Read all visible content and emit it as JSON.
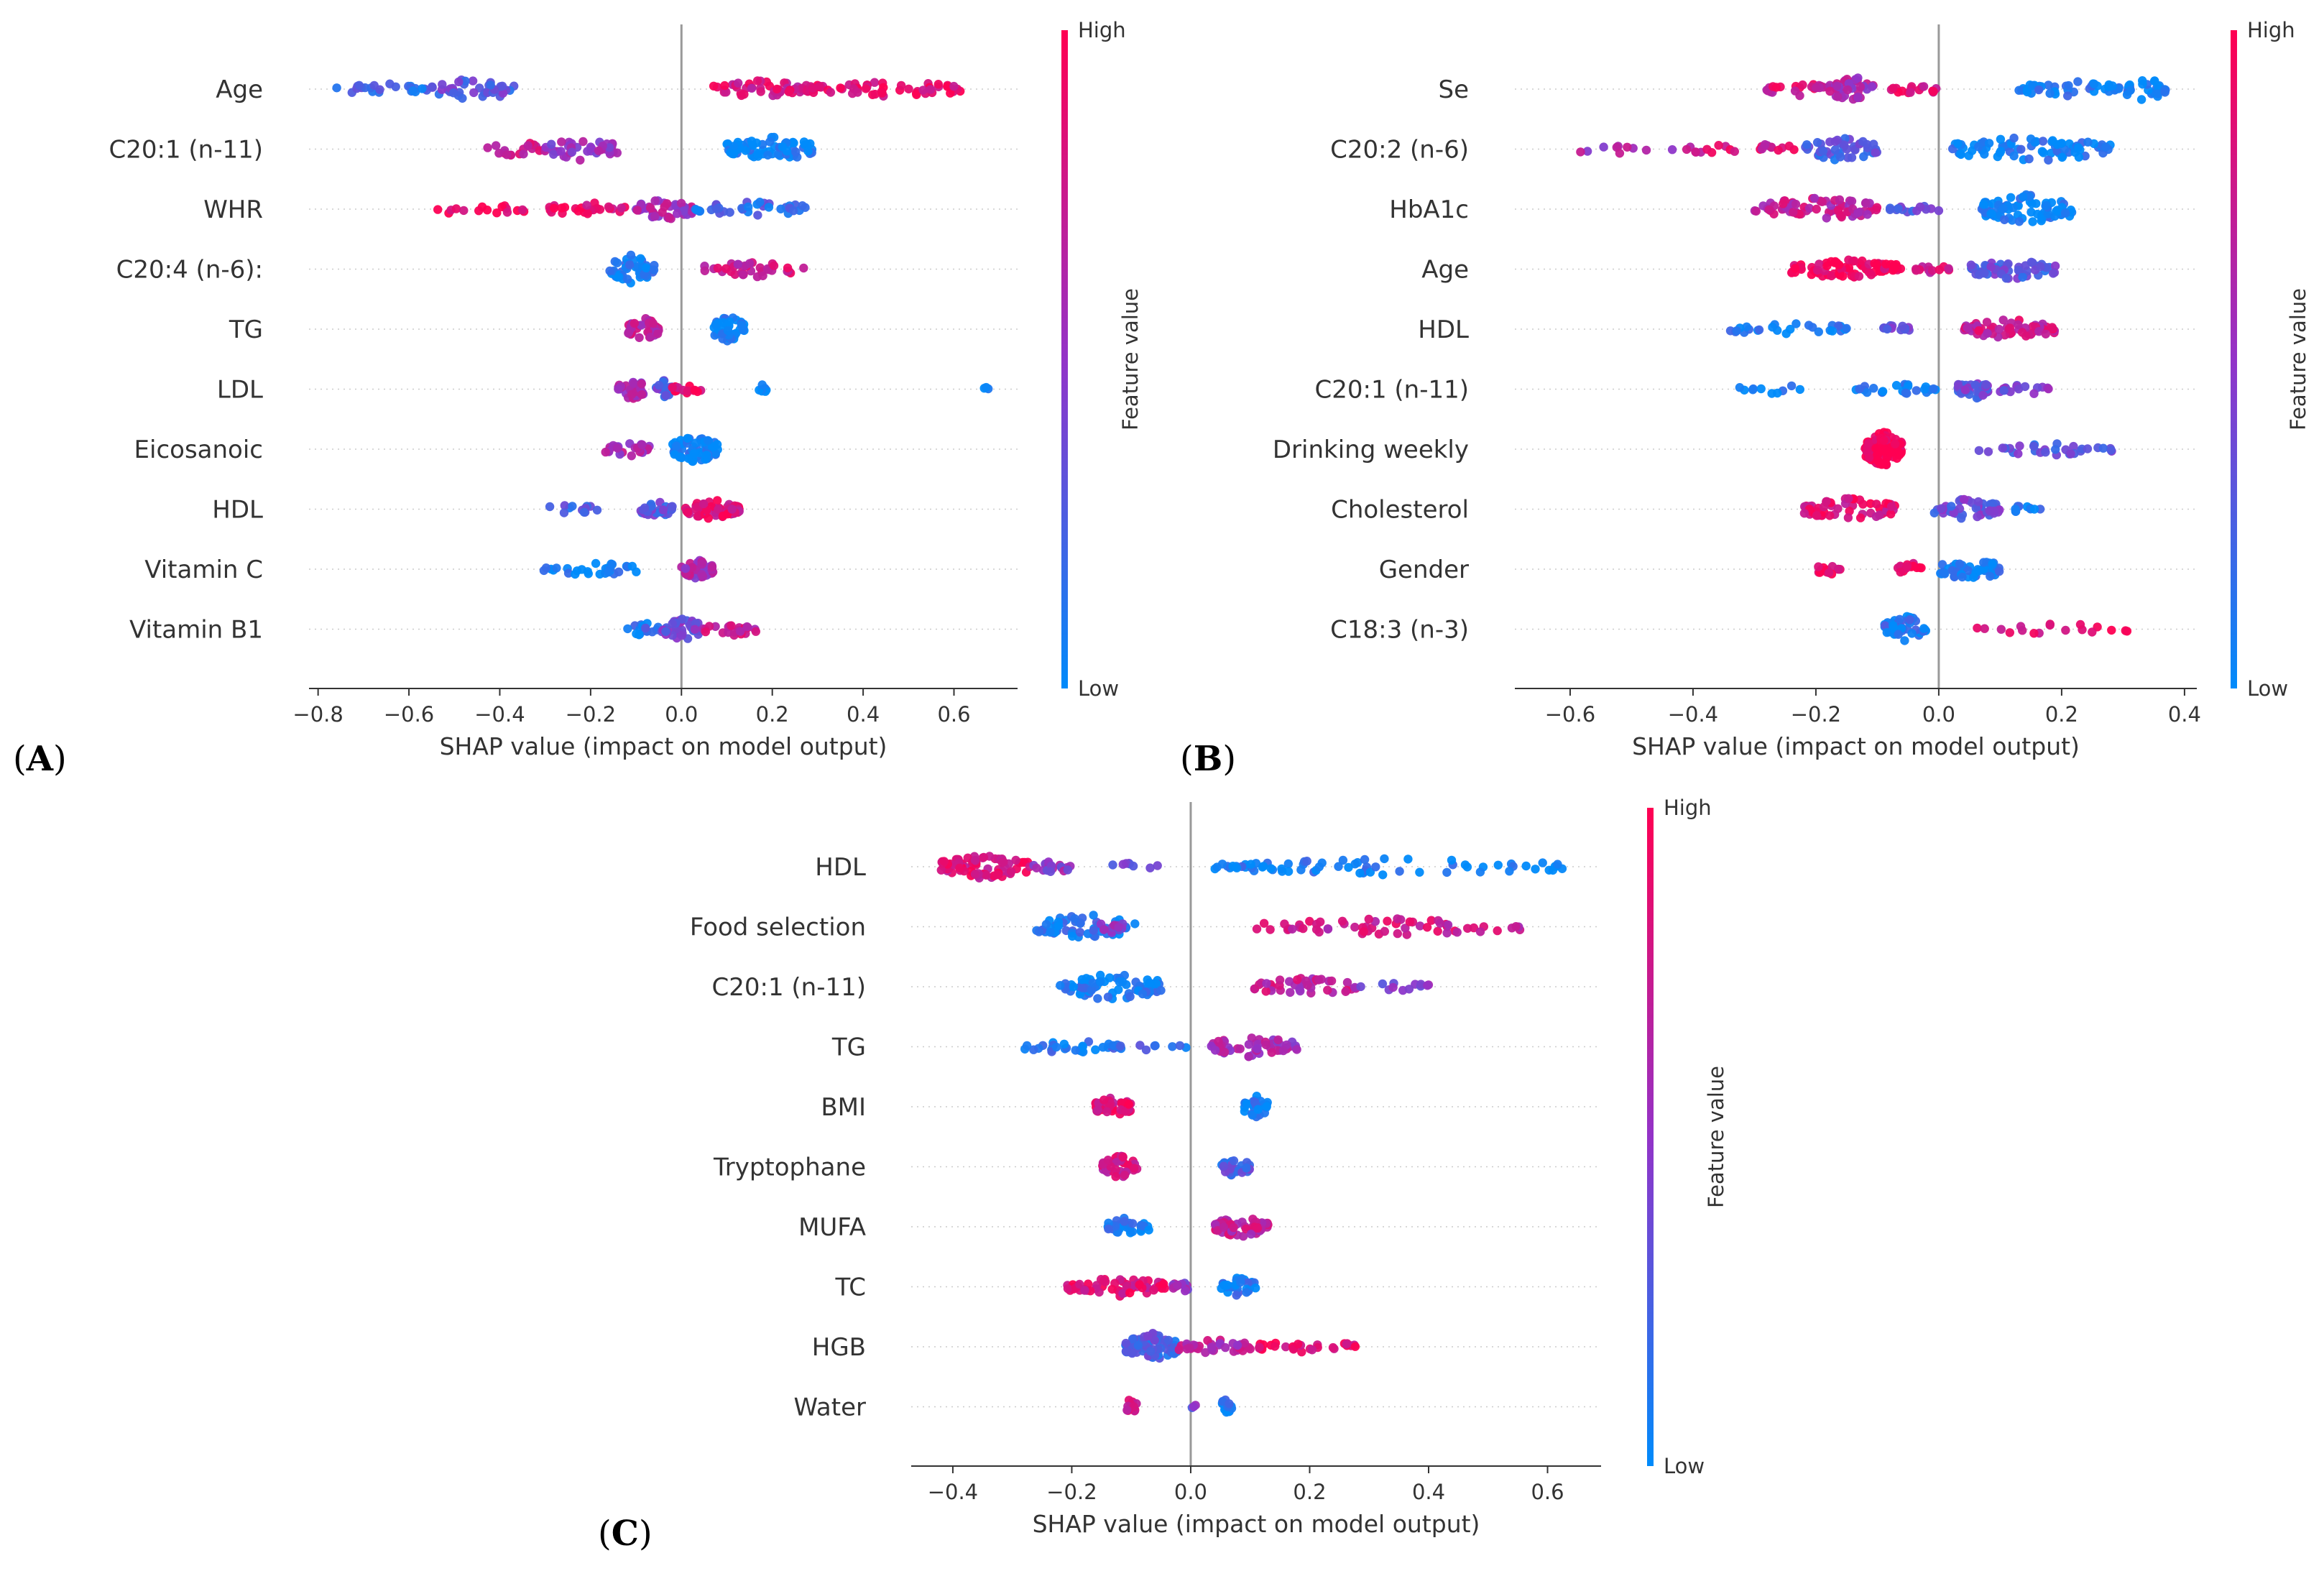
{
  "figure": {
    "x_axis_label": "SHAP value (impact on model output)",
    "colorbar": {
      "high": "High",
      "low": "Low",
      "title": "Feature value",
      "color_low": "#008bfb",
      "color_mid": "#9333c8",
      "color_high": "#ff0052"
    }
  },
  "chart_data": [
    {
      "panel": "A",
      "tag_open": "(",
      "tag_letter": "A",
      "tag_close": ")",
      "type": "scatter",
      "subtype": "shap-beeswarm",
      "xlabel": "SHAP value (impact on model output)",
      "xlim": [
        -0.82,
        0.74
      ],
      "xticks": [
        -0.8,
        -0.6,
        -0.4,
        -0.2,
        0.0,
        0.2,
        0.4,
        0.6
      ],
      "tick_labels": [
        "−0.8",
        "−0.6",
        "−0.4",
        "−0.2",
        "0.0",
        "0.2",
        "0.4",
        "0.6"
      ],
      "features": [
        {
          "name": "Age",
          "clusters": [
            [
              -0.76,
              -0.56,
              0.2,
              24,
              10
            ],
            [
              -0.55,
              -0.36,
              0.3,
              40,
              16
            ],
            [
              0.07,
              0.28,
              0.8,
              50,
              13
            ],
            [
              0.28,
              0.62,
              0.9,
              55,
              12
            ]
          ]
        },
        {
          "name": "C20:1 (n-11)",
          "clusters": [
            [
              -0.43,
              -0.3,
              0.75,
              20,
              12
            ],
            [
              -0.3,
              -0.14,
              0.5,
              40,
              16
            ],
            [
              0.1,
              0.3,
              0.02,
              70,
              18
            ]
          ]
        },
        {
          "name": "WHR",
          "clusters": [
            [
              -0.57,
              -0.34,
              0.95,
              16,
              8
            ],
            [
              -0.3,
              -0.12,
              0.9,
              26,
              10
            ],
            [
              -0.1,
              0.03,
              0.6,
              50,
              16
            ],
            [
              0.03,
              0.28,
              0.2,
              36,
              11
            ]
          ]
        },
        {
          "name": "C20:4 (n-6):",
          "clusters": [
            [
              -0.16,
              -0.06,
              0.05,
              45,
              20
            ],
            [
              0.05,
              0.28,
              0.75,
              36,
              11
            ]
          ]
        },
        {
          "name": "TG",
          "clusters": [
            [
              -0.12,
              -0.05,
              0.7,
              40,
              17
            ],
            [
              0.07,
              0.14,
              0.02,
              44,
              19
            ]
          ]
        },
        {
          "name": "LDL",
          "clusters": [
            [
              -0.14,
              -0.08,
              0.6,
              30,
              16
            ],
            [
              -0.06,
              -0.02,
              0.3,
              20,
              13
            ],
            [
              -0.02,
              0.05,
              0.9,
              14,
              8
            ],
            [
              0.16,
              0.19,
              0.02,
              8,
              7
            ],
            [
              0.66,
              0.68,
              0.02,
              3,
              4
            ]
          ]
        },
        {
          "name": "Eicosanoic",
          "clusters": [
            [
              -0.17,
              -0.06,
              0.6,
              26,
              10
            ],
            [
              -0.02,
              0.08,
              0.02,
              65,
              20
            ]
          ]
        },
        {
          "name": "HDL",
          "clusters": [
            [
              -0.3,
              -0.18,
              0.2,
              12,
              8
            ],
            [
              -0.09,
              -0.02,
              0.3,
              30,
              12
            ],
            [
              0.0,
              0.13,
              0.85,
              60,
              14
            ]
          ]
        },
        {
          "name": "Vitamin C",
          "clusters": [
            [
              -0.31,
              -0.09,
              0.02,
              28,
              10
            ],
            [
              0.0,
              0.07,
              0.6,
              44,
              14
            ]
          ]
        },
        {
          "name": "Vitamin B1",
          "clusters": [
            [
              -0.12,
              -0.05,
              0.15,
              16,
              10
            ],
            [
              -0.05,
              0.05,
              0.4,
              40,
              16
            ],
            [
              0.05,
              0.17,
              0.75,
              22,
              10
            ]
          ]
        }
      ]
    },
    {
      "panel": "B",
      "tag_open": "(",
      "tag_letter": "B",
      "tag_close": ")",
      "type": "scatter",
      "subtype": "shap-beeswarm",
      "xlabel": "SHAP value (impact on model output)",
      "xlim": [
        -0.69,
        0.42
      ],
      "xticks": [
        -0.6,
        -0.4,
        -0.2,
        0.0,
        0.2,
        0.4
      ],
      "tick_labels": [
        "−0.6",
        "−0.4",
        "−0.2",
        "0.0",
        "0.2",
        "0.4"
      ],
      "features": [
        {
          "name": "Se",
          "clusters": [
            [
              -0.28,
              -0.18,
              0.8,
              22,
              10
            ],
            [
              -0.18,
              -0.1,
              0.6,
              40,
              18
            ],
            [
              -0.08,
              0.0,
              0.85,
              16,
              8
            ],
            [
              0.13,
              0.3,
              0.05,
              40,
              12
            ],
            [
              0.3,
              0.37,
              0.03,
              28,
              16
            ]
          ]
        },
        {
          "name": "C20:2 (n-6)",
          "clusters": [
            [
              -0.63,
              -0.42,
              0.6,
              10,
              6
            ],
            [
              -0.42,
              -0.22,
              0.8,
              22,
              9
            ],
            [
              -0.22,
              -0.1,
              0.25,
              45,
              17
            ],
            [
              0.02,
              0.28,
              0.05,
              80,
              18
            ]
          ]
        },
        {
          "name": "HbA1c",
          "clusters": [
            [
              -0.3,
              -0.1,
              0.7,
              70,
              18
            ],
            [
              -0.08,
              0.0,
              0.3,
              14,
              6
            ],
            [
              0.07,
              0.22,
              0.05,
              80,
              22
            ]
          ]
        },
        {
          "name": "Age",
          "clusters": [
            [
              -0.24,
              -0.06,
              0.95,
              80,
              14
            ],
            [
              -0.04,
              0.02,
              0.8,
              12,
              6
            ],
            [
              0.05,
              0.19,
              0.3,
              55,
              15
            ]
          ]
        },
        {
          "name": "HDL",
          "clusters": [
            [
              -0.35,
              -0.14,
              0.05,
              26,
              9
            ],
            [
              -0.09,
              -0.04,
              0.3,
              14,
              8
            ],
            [
              0.04,
              0.19,
              0.75,
              60,
              15
            ]
          ]
        },
        {
          "name": "C20:1 (n-11)",
          "clusters": [
            [
              -0.33,
              -0.22,
              0.02,
              10,
              8
            ],
            [
              -0.14,
              0.0,
              0.05,
              24,
              9
            ],
            [
              0.03,
              0.08,
              0.35,
              40,
              15
            ],
            [
              0.1,
              0.18,
              0.4,
              16,
              10
            ]
          ]
        },
        {
          "name": "Drinking weekly",
          "clusters": [
            [
              -0.12,
              -0.06,
              1.0,
              110,
              26
            ],
            [
              0.06,
              0.3,
              0.3,
              30,
              9
            ]
          ]
        },
        {
          "name": "Cholesterol",
          "clusters": [
            [
              -0.22,
              -0.07,
              0.85,
              60,
              16
            ],
            [
              -0.01,
              0.1,
              0.35,
              50,
              15
            ],
            [
              0.1,
              0.17,
              0.05,
              10,
              6
            ]
          ]
        },
        {
          "name": "Gender",
          "clusters": [
            [
              -0.2,
              -0.16,
              0.95,
              14,
              9
            ],
            [
              -0.07,
              -0.02,
              0.95,
              14,
              9
            ],
            [
              0.0,
              0.1,
              0.05,
              50,
              17
            ]
          ]
        },
        {
          "name": "C18:3 (n-3)",
          "clusters": [
            [
              -0.09,
              -0.02,
              0.1,
              50,
              20
            ],
            [
              0.06,
              0.32,
              0.9,
              18,
              9
            ]
          ]
        }
      ]
    },
    {
      "panel": "C",
      "tag_open": "(",
      "tag_letter": "C",
      "tag_close": ")",
      "type": "scatter",
      "subtype": "shap-beeswarm",
      "xlabel": "SHAP value (impact on model output)",
      "xlim": [
        -0.47,
        0.69
      ],
      "xticks": [
        -0.4,
        -0.2,
        0.0,
        0.2,
        0.4,
        0.6
      ],
      "tick_labels": [
        "−0.4",
        "−0.2",
        "0.0",
        "0.2",
        "0.4",
        "0.6"
      ],
      "features": [
        {
          "name": "HDL",
          "clusters": [
            [
              -0.42,
              -0.27,
              0.85,
              80,
              18
            ],
            [
              -0.27,
              -0.2,
              0.5,
              20,
              10
            ],
            [
              -0.19,
              -0.05,
              0.3,
              8,
              6
            ],
            [
              0.03,
              0.63,
              0.05,
              70,
              12
            ]
          ]
        },
        {
          "name": "Food selection",
          "clusters": [
            [
              -0.26,
              -0.09,
              0.1,
              60,
              18
            ],
            [
              -0.16,
              -0.1,
              0.5,
              14,
              10
            ],
            [
              0.11,
              0.56,
              0.75,
              60,
              12
            ]
          ]
        },
        {
          "name": "C20:1 (n-11)",
          "clusters": [
            [
              -0.22,
              -0.05,
              0.05,
              70,
              20
            ],
            [
              0.1,
              0.28,
              0.7,
              40,
              13
            ],
            [
              0.28,
              0.4,
              0.45,
              12,
              7
            ]
          ]
        },
        {
          "name": "TG",
          "clusters": [
            [
              -0.29,
              -0.12,
              0.1,
              30,
              10
            ],
            [
              -0.12,
              0.0,
              0.15,
              10,
              6
            ],
            [
              0.03,
              0.18,
              0.6,
              50,
              15
            ]
          ]
        },
        {
          "name": "BMI",
          "clusters": [
            [
              -0.16,
              -0.1,
              0.85,
              40,
              14
            ],
            [
              0.09,
              0.13,
              0.05,
              30,
              16
            ]
          ]
        },
        {
          "name": "Tryptophane",
          "clusters": [
            [
              -0.15,
              -0.09,
              0.8,
              40,
              16
            ],
            [
              0.05,
              0.1,
              0.25,
              35,
              14
            ]
          ]
        },
        {
          "name": "MUFA",
          "clusters": [
            [
              -0.14,
              -0.07,
              0.05,
              34,
              14
            ],
            [
              0.04,
              0.13,
              0.7,
              55,
              16
            ]
          ]
        },
        {
          "name": "TC",
          "clusters": [
            [
              -0.21,
              -0.04,
              0.85,
              55,
              14
            ],
            [
              -0.03,
              0.0,
              0.55,
              14,
              10
            ],
            [
              0.05,
              0.11,
              0.1,
              28,
              13
            ]
          ]
        },
        {
          "name": "HGB",
          "clusters": [
            [
              -0.11,
              -0.02,
              0.25,
              80,
              20
            ],
            [
              -0.02,
              0.1,
              0.65,
              34,
              11
            ],
            [
              0.1,
              0.29,
              0.9,
              30,
              8
            ]
          ]
        },
        {
          "name": "Water",
          "clusters": [
            [
              -0.11,
              -0.09,
              0.8,
              12,
              12
            ],
            [
              0.0,
              0.01,
              0.4,
              3,
              4
            ],
            [
              0.05,
              0.07,
              0.05,
              16,
              14
            ]
          ]
        }
      ]
    }
  ]
}
